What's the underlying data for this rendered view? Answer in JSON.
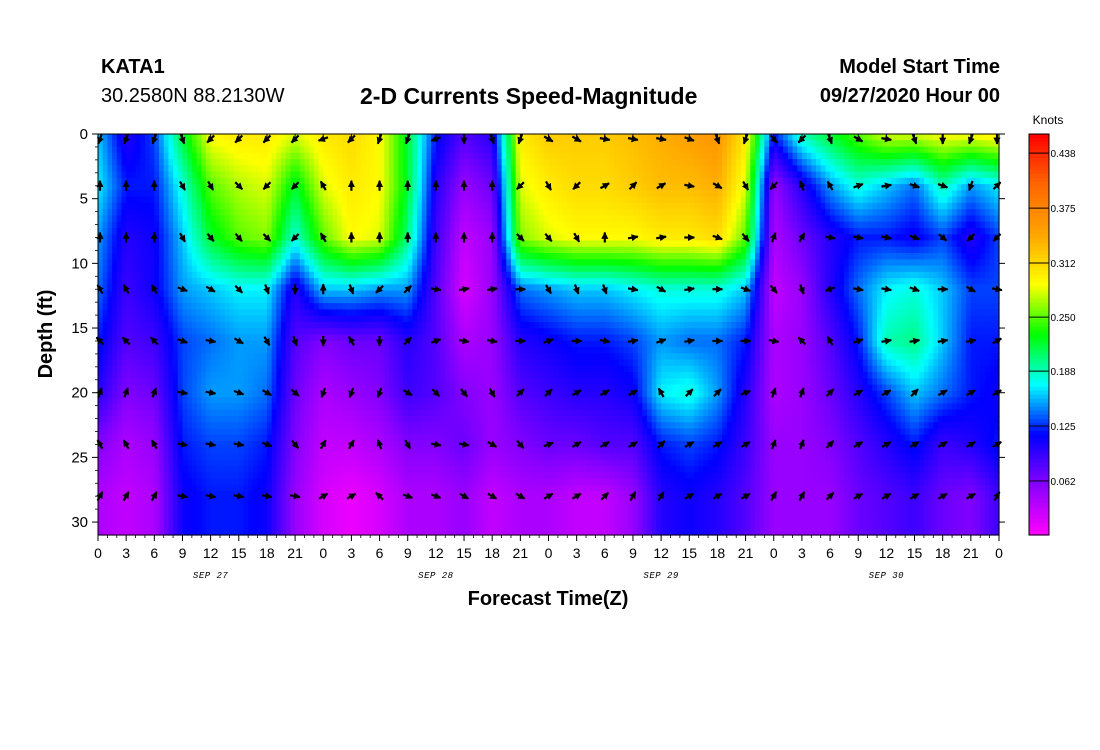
{
  "header": {
    "station_id": "KATA1",
    "coordinates": "30.2580N 88.2130W",
    "title": "2-D Currents Speed-Magnitude",
    "start_label": "Model Start Time",
    "start_value": "09/27/2020 Hour 00"
  },
  "chart_data": {
    "type": "heatmap",
    "title": "2-D Currents Speed-Magnitude",
    "xlabel": "Forecast Time(Z)",
    "ylabel": "Depth (ft)",
    "x_tick_labels": [
      "0",
      "3",
      "6",
      "9",
      "12",
      "15",
      "18",
      "21",
      "0",
      "3",
      "6",
      "9",
      "12",
      "15",
      "18",
      "21",
      "0",
      "3",
      "6",
      "9",
      "12",
      "15",
      "18",
      "21",
      "0",
      "3",
      "6",
      "9",
      "12",
      "15",
      "18",
      "21",
      "0"
    ],
    "x_range_hours": [
      0,
      96
    ],
    "date_labels": [
      {
        "hour": 12,
        "label": "SEP 27"
      },
      {
        "hour": 36,
        "label": "SEP 28"
      },
      {
        "hour": 60,
        "label": "SEP 29"
      },
      {
        "hour": 84,
        "label": "SEP 30"
      }
    ],
    "y_ticks": [
      0,
      5,
      10,
      15,
      20,
      25,
      30
    ],
    "y_range_ft": [
      0,
      31
    ],
    "colorbar": {
      "unit": "Knots",
      "range": [
        0,
        0.46
      ],
      "ticks": [
        0.062,
        0.125,
        0.188,
        0.25,
        0.312,
        0.375,
        0.438
      ],
      "tick_labels": [
        "0.062",
        "0.125",
        "0.188",
        "0.250",
        "0.312",
        "0.375",
        "0.438"
      ],
      "colors": [
        "#ff00ff",
        "#8800ff",
        "#0000ff",
        "#00ffff",
        "#00ff00",
        "#ffff00",
        "#ffa500",
        "#ff6600",
        "#ff0000"
      ]
    },
    "depth_levels_ft": [
      0,
      4,
      8,
      12,
      16,
      20,
      24,
      28
    ],
    "speed_grid_hours": [
      0,
      3,
      6,
      9,
      12,
      15,
      18,
      21,
      24,
      27,
      30,
      33,
      36,
      39,
      42,
      45,
      48,
      51,
      54,
      57,
      60,
      63,
      66,
      69,
      72,
      75,
      78,
      81,
      84,
      87,
      90,
      93,
      96
    ],
    "speed_grid_knots": [
      [
        0.16,
        0.1,
        0.13,
        0.22,
        0.29,
        0.3,
        0.3,
        0.28,
        0.3,
        0.31,
        0.29,
        0.22,
        0.12,
        0.08,
        0.1,
        0.3,
        0.32,
        0.32,
        0.32,
        0.33,
        0.34,
        0.35,
        0.36,
        0.3,
        0.12,
        0.19,
        0.22,
        0.25,
        0.28,
        0.28,
        0.29,
        0.29,
        0.3
      ],
      [
        0.17,
        0.12,
        0.12,
        0.18,
        0.25,
        0.27,
        0.28,
        0.22,
        0.28,
        0.3,
        0.29,
        0.22,
        0.1,
        0.05,
        0.07,
        0.28,
        0.3,
        0.31,
        0.31,
        0.32,
        0.33,
        0.33,
        0.34,
        0.28,
        0.05,
        0.1,
        0.15,
        0.18,
        0.16,
        0.14,
        0.19,
        0.15,
        0.17
      ],
      [
        0.15,
        0.1,
        0.11,
        0.16,
        0.22,
        0.25,
        0.26,
        0.18,
        0.25,
        0.29,
        0.28,
        0.2,
        0.09,
        0.03,
        0.05,
        0.26,
        0.28,
        0.29,
        0.29,
        0.29,
        0.3,
        0.3,
        0.31,
        0.25,
        0.04,
        0.07,
        0.1,
        0.12,
        0.12,
        0.11,
        0.13,
        0.1,
        0.13
      ],
      [
        0.14,
        0.09,
        0.11,
        0.15,
        0.16,
        0.17,
        0.17,
        0.1,
        0.16,
        0.16,
        0.15,
        0.15,
        0.08,
        0.02,
        0.05,
        0.14,
        0.15,
        0.16,
        0.16,
        0.17,
        0.18,
        0.18,
        0.18,
        0.16,
        0.03,
        0.05,
        0.1,
        0.14,
        0.17,
        0.18,
        0.16,
        0.13,
        0.13
      ],
      [
        0.12,
        0.08,
        0.09,
        0.13,
        0.14,
        0.15,
        0.15,
        0.08,
        0.06,
        0.07,
        0.07,
        0.1,
        0.08,
        0.04,
        0.05,
        0.1,
        0.11,
        0.12,
        0.12,
        0.13,
        0.15,
        0.14,
        0.14,
        0.12,
        0.04,
        0.05,
        0.08,
        0.12,
        0.19,
        0.2,
        0.16,
        0.12,
        0.12
      ],
      [
        0.1,
        0.06,
        0.07,
        0.13,
        0.15,
        0.15,
        0.14,
        0.07,
        0.04,
        0.05,
        0.06,
        0.09,
        0.08,
        0.06,
        0.05,
        0.08,
        0.09,
        0.1,
        0.1,
        0.11,
        0.17,
        0.18,
        0.15,
        0.1,
        0.04,
        0.05,
        0.07,
        0.1,
        0.13,
        0.16,
        0.14,
        0.12,
        0.11
      ],
      [
        0.06,
        0.04,
        0.05,
        0.12,
        0.13,
        0.13,
        0.12,
        0.06,
        0.03,
        0.03,
        0.04,
        0.06,
        0.06,
        0.07,
        0.05,
        0.06,
        0.07,
        0.07,
        0.08,
        0.08,
        0.12,
        0.13,
        0.12,
        0.09,
        0.05,
        0.05,
        0.06,
        0.08,
        0.1,
        0.12,
        0.09,
        0.1,
        0.12
      ],
      [
        0.04,
        0.03,
        0.04,
        0.11,
        0.12,
        0.12,
        0.11,
        0.05,
        0.02,
        0.01,
        0.02,
        0.04,
        0.04,
        0.05,
        0.03,
        0.04,
        0.04,
        0.03,
        0.03,
        0.05,
        0.1,
        0.11,
        0.1,
        0.08,
        0.05,
        0.05,
        0.05,
        0.07,
        0.08,
        0.09,
        0.07,
        0.06,
        0.09
      ]
    ],
    "vector_hours": [
      0,
      3,
      6,
      9,
      12,
      15,
      18,
      21,
      24,
      27,
      30,
      33,
      36,
      39,
      42,
      45,
      48,
      51,
      54,
      57,
      60,
      63,
      66,
      69,
      72,
      75,
      78,
      81,
      84,
      87,
      90,
      93,
      96
    ],
    "vector_directions_deg": [
      [
        200,
        200,
        200,
        160,
        225,
        225,
        225,
        225,
        250,
        225,
        200,
        200,
        250,
        180,
        160,
        200,
        120,
        120,
        100,
        100,
        100,
        110,
        160,
        200,
        140,
        225,
        160,
        120,
        100,
        160,
        180,
        200,
        180
      ],
      [
        0,
        0,
        0,
        150,
        150,
        135,
        225,
        225,
        330,
        0,
        0,
        0,
        0,
        0,
        0,
        225,
        150,
        225,
        60,
        45,
        60,
        100,
        120,
        150,
        225,
        340,
        330,
        70,
        80,
        110,
        110,
        200,
        45
      ],
      [
        0,
        0,
        0,
        150,
        140,
        140,
        135,
        225,
        330,
        0,
        0,
        0,
        0,
        0,
        0,
        135,
        140,
        150,
        0,
        80,
        80,
        90,
        110,
        140,
        20,
        30,
        100,
        100,
        100,
        110,
        130,
        225,
        225
      ],
      [
        330,
        330,
        330,
        110,
        120,
        135,
        160,
        180,
        0,
        160,
        225,
        45,
        100,
        80,
        80,
        90,
        150,
        160,
        160,
        100,
        120,
        80,
        90,
        110,
        140,
        160,
        250,
        100,
        100,
        110,
        90,
        120,
        100
      ],
      [
        315,
        315,
        315,
        110,
        100,
        120,
        150,
        160,
        180,
        330,
        180,
        45,
        70,
        100,
        100,
        90,
        70,
        90,
        100,
        80,
        70,
        80,
        90,
        90,
        100,
        315,
        330,
        70,
        80,
        80,
        80,
        80,
        60
      ],
      [
        20,
        20,
        20,
        100,
        100,
        110,
        120,
        130,
        200,
        200,
        200,
        120,
        135,
        140,
        150,
        45,
        45,
        60,
        60,
        60,
        330,
        45,
        45,
        70,
        20,
        20,
        45,
        60,
        60,
        45,
        60,
        60,
        60
      ],
      [
        330,
        330,
        330,
        100,
        100,
        100,
        110,
        140,
        30,
        30,
        340,
        150,
        100,
        100,
        120,
        140,
        70,
        60,
        60,
        60,
        45,
        60,
        60,
        60,
        20,
        20,
        45,
        60,
        60,
        60,
        60,
        60,
        60
      ],
      [
        30,
        30,
        30,
        100,
        100,
        100,
        100,
        100,
        60,
        60,
        315,
        110,
        110,
        120,
        120,
        120,
        60,
        60,
        45,
        30,
        30,
        60,
        60,
        60,
        30,
        30,
        45,
        60,
        60,
        60,
        60,
        60,
        30
      ]
    ]
  }
}
